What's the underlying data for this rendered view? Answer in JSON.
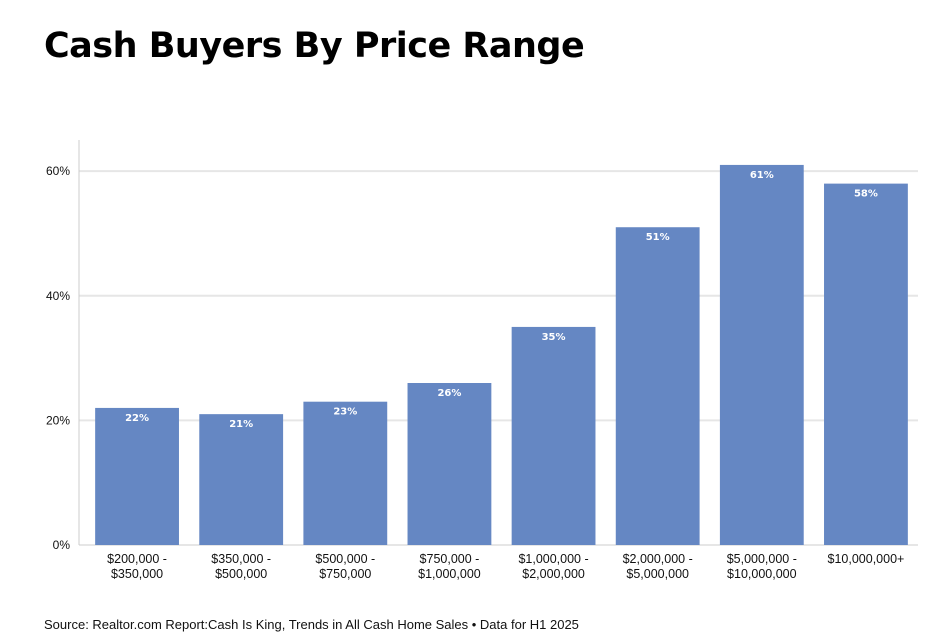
{
  "title": "Cash Buyers By Price Range",
  "source": "Source: Realtor.com Report:Cash Is King, Trends in All Cash Home Sales • Data for H1 2025",
  "colors": {
    "bar": "#6587c3",
    "grid": "#e6e6e6",
    "axis": "#cccccc",
    "label": "#ffffff"
  },
  "chart_data": {
    "type": "bar",
    "title": "Cash Buyers By Price Range",
    "categories": [
      [
        "$200,000 -",
        "$350,000"
      ],
      [
        "$350,000 -",
        "$500,000"
      ],
      [
        "$500,000 -",
        "$750,000"
      ],
      [
        "$750,000 -",
        "$1,000,000"
      ],
      [
        "$1,000,000 -",
        "$2,000,000"
      ],
      [
        "$2,000,000 -",
        "$5,000,000"
      ],
      [
        "$5,000,000 -",
        "$10,000,000"
      ],
      [
        "$10,000,000+"
      ]
    ],
    "values": [
      22,
      21,
      23,
      26,
      35,
      51,
      61,
      58
    ],
    "data_labels": [
      "22%",
      "21%",
      "23%",
      "26%",
      "35%",
      "51%",
      "61%",
      "58%"
    ],
    "y_ticks": [
      0,
      20,
      40,
      60
    ],
    "y_tick_labels": [
      "0%",
      "20%",
      "40%",
      "60%"
    ],
    "ylim": [
      0,
      65
    ],
    "grid": true,
    "xlabel": "",
    "ylabel": ""
  }
}
